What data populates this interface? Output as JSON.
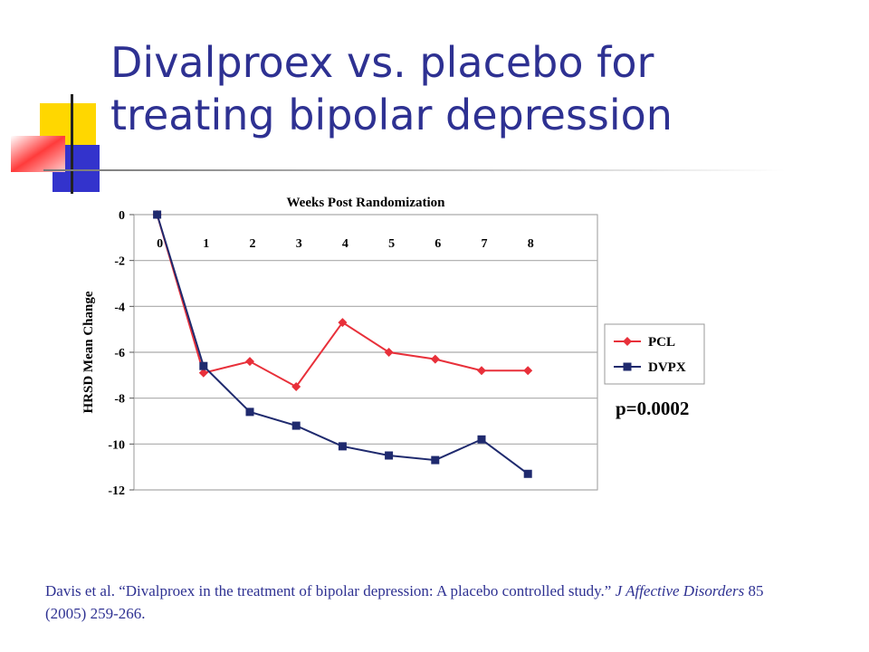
{
  "slide": {
    "title_lines": [
      "Divalproex vs. placebo for",
      "treating bipolar depression"
    ],
    "citation": {
      "lead": "Davis et al. “Divalproex in the treatment of bipolar depression: A placebo controlled study.” ",
      "journal": "J Affective Disorders",
      "tail": " 85 (2005) 259-266."
    }
  },
  "chart_data": {
    "type": "line",
    "x_label": "Weeks Post Randomization",
    "y_label": "HRSD Mean Change",
    "x": [
      0,
      1,
      2,
      3,
      4,
      5,
      6,
      7,
      8
    ],
    "xlim": [
      -0.5,
      9.5
    ],
    "xticks": [
      0,
      1,
      2,
      3,
      4,
      5,
      6,
      7,
      8
    ],
    "ylim": [
      -12,
      0
    ],
    "yticks": [
      0,
      -2,
      -4,
      -6,
      -8,
      -10,
      -12
    ],
    "grid": true,
    "legend": "right",
    "series": [
      {
        "name": "PCL",
        "color": "#e8303a",
        "marker": "diamond",
        "values": [
          0,
          -6.9,
          -6.4,
          -7.5,
          -4.7,
          -6.0,
          -6.3,
          -6.8,
          -6.8
        ]
      },
      {
        "name": "DVPX",
        "color": "#1f2a6e",
        "marker": "square",
        "values": [
          0,
          -6.6,
          -8.6,
          -9.2,
          -10.1,
          -10.5,
          -10.7,
          -9.8,
          -11.3
        ]
      }
    ],
    "annotation": "p=0.0002"
  }
}
